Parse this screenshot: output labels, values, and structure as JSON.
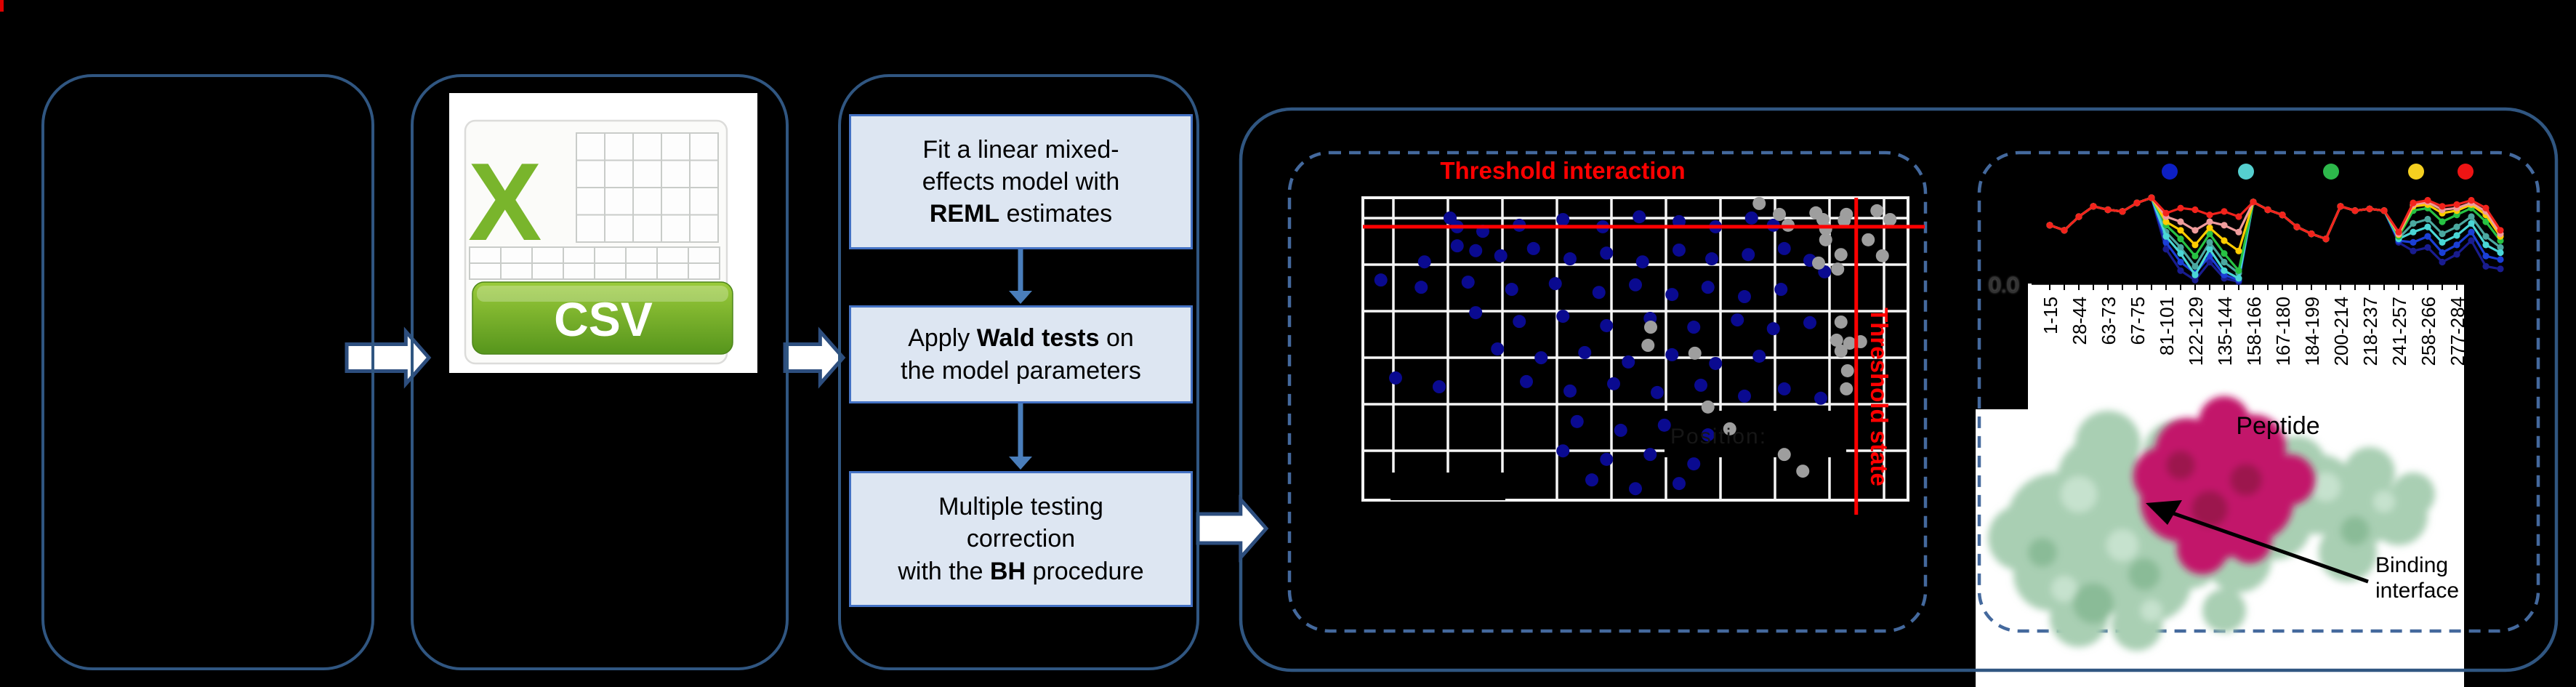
{
  "figure": {
    "corner_mark_color": "#dd0000",
    "background": "#000000"
  },
  "workflow": {
    "panel_border_color": "#305681",
    "box_fill": "#dde6f2",
    "box_border": "#4472c4",
    "arrow_color": "#4a7ebb",
    "boxes": [
      {
        "name": "fit-model-step",
        "lines": [
          {
            "pre": "Fit a linear mixed-",
            "bold": "",
            "post": ""
          },
          {
            "pre": "effects model with",
            "bold": "",
            "post": ""
          },
          {
            "pre": "",
            "bold": "REML",
            "post": " estimates"
          }
        ]
      },
      {
        "name": "wald-test-step",
        "lines": [
          {
            "pre": "Apply ",
            "bold": "Wald tests",
            "post": " on"
          },
          {
            "pre": "the model parameters",
            "bold": "",
            "post": ""
          }
        ]
      },
      {
        "name": "bh-correction-step",
        "lines": [
          {
            "pre": "Multiple testing",
            "bold": "",
            "post": ""
          },
          {
            "pre": "correction",
            "bold": "",
            "post": ""
          },
          {
            "pre": "with the ",
            "bold": "BH",
            "post": " procedure"
          }
        ]
      }
    ]
  },
  "csv_icon": {
    "label": "CSV",
    "x_letter": "X",
    "x_color": "#79b52c",
    "banner_top": "#9bcb3b",
    "banner_bottom": "#56951c",
    "grid_line_color": "#c9ccc9"
  },
  "chart_data": [
    {
      "id": "interaction-scatter",
      "type": "scatter",
      "title": "Threshold interaction",
      "title_color": "#ff0000",
      "vertical_threshold_label": "Threshold state",
      "threshold_line_color": "#ff0000",
      "h_threshold_frac": 0.096,
      "v_threshold_frac": 0.905,
      "faint_axis_label": "Position:",
      "grid_color": "#f5f5f5",
      "grid_on": true,
      "point_color_blue": "#0a0a90",
      "point_color_gray": "#9e9e9e",
      "blue_points": [
        [
          0.16,
          0.067
        ],
        [
          0.173,
          0.096
        ],
        [
          0.22,
          0.111
        ],
        [
          0.287,
          0.091
        ],
        [
          0.367,
          0.072
        ],
        [
          0.44,
          0.096
        ],
        [
          0.507,
          0.063
        ],
        [
          0.58,
          0.079
        ],
        [
          0.647,
          0.096
        ],
        [
          0.713,
          0.067
        ],
        [
          0.753,
          0.091
        ],
        [
          0.173,
          0.159
        ],
        [
          0.207,
          0.175
        ],
        [
          0.113,
          0.212
        ],
        [
          0.253,
          0.192
        ],
        [
          0.313,
          0.168
        ],
        [
          0.38,
          0.202
        ],
        [
          0.447,
          0.183
        ],
        [
          0.513,
          0.212
        ],
        [
          0.58,
          0.173
        ],
        [
          0.64,
          0.202
        ],
        [
          0.707,
          0.188
        ],
        [
          0.773,
          0.168
        ],
        [
          0.82,
          0.207
        ],
        [
          0.847,
          0.245
        ],
        [
          0.033,
          0.272
        ],
        [
          0.107,
          0.296
        ],
        [
          0.193,
          0.279
        ],
        [
          0.273,
          0.303
        ],
        [
          0.353,
          0.284
        ],
        [
          0.433,
          0.313
        ],
        [
          0.5,
          0.288
        ],
        [
          0.567,
          0.32
        ],
        [
          0.633,
          0.296
        ],
        [
          0.7,
          0.327
        ],
        [
          0.767,
          0.303
        ],
        [
          0.207,
          0.38
        ],
        [
          0.287,
          0.409
        ],
        [
          0.367,
          0.392
        ],
        [
          0.447,
          0.423
        ],
        [
          0.527,
          0.399
        ],
        [
          0.607,
          0.428
        ],
        [
          0.687,
          0.404
        ],
        [
          0.753,
          0.433
        ],
        [
          0.82,
          0.413
        ],
        [
          0.247,
          0.5
        ],
        [
          0.327,
          0.529
        ],
        [
          0.407,
          0.512
        ],
        [
          0.487,
          0.543
        ],
        [
          0.567,
          0.519
        ],
        [
          0.647,
          0.548
        ],
        [
          0.727,
          0.524
        ],
        [
          0.06,
          0.596
        ],
        [
          0.14,
          0.625
        ],
        [
          0.3,
          0.608
        ],
        [
          0.38,
          0.639
        ],
        [
          0.46,
          0.615
        ],
        [
          0.54,
          0.644
        ],
        [
          0.62,
          0.62
        ],
        [
          0.7,
          0.656
        ],
        [
          0.773,
          0.632
        ],
        [
          0.84,
          0.663
        ],
        [
          0.393,
          0.74
        ],
        [
          0.473,
          0.769
        ],
        [
          0.553,
          0.752
        ],
        [
          0.633,
          0.784
        ],
        [
          0.367,
          0.837
        ],
        [
          0.447,
          0.865
        ],
        [
          0.527,
          0.849
        ],
        [
          0.607,
          0.88
        ],
        [
          0.42,
          0.933
        ],
        [
          0.5,
          0.962
        ],
        [
          0.58,
          0.945
        ]
      ],
      "gray_points": [
        [
          0.727,
          0.019
        ],
        [
          0.764,
          0.055
        ],
        [
          0.78,
          0.091
        ],
        [
          0.943,
          0.043
        ],
        [
          0.967,
          0.072
        ],
        [
          0.927,
          0.139
        ],
        [
          0.953,
          0.192
        ],
        [
          0.887,
          0.055
        ],
        [
          0.831,
          0.05
        ],
        [
          0.844,
          0.072
        ],
        [
          0.849,
          0.103
        ],
        [
          0.883,
          0.075
        ],
        [
          0.849,
          0.139
        ],
        [
          0.877,
          0.188
        ],
        [
          0.871,
          0.236
        ],
        [
          0.836,
          0.216
        ],
        [
          0.877,
          0.411
        ],
        [
          0.869,
          0.471
        ],
        [
          0.893,
          0.481
        ],
        [
          0.877,
          0.507
        ],
        [
          0.889,
          0.572
        ],
        [
          0.887,
          0.632
        ],
        [
          0.528,
          0.428
        ],
        [
          0.523,
          0.488
        ],
        [
          0.609,
          0.514
        ],
        [
          0.633,
          0.692
        ],
        [
          0.673,
          0.764
        ],
        [
          0.773,
          0.849
        ],
        [
          0.807,
          0.904
        ],
        [
          0.913,
          0.476
        ]
      ]
    },
    {
      "id": "uptake-profile",
      "type": "line",
      "xlabel": "Peptide",
      "y_tick_label": "0.0",
      "x_tick_labels": [
        "1-15",
        "28-44",
        "63-73",
        "67-75",
        "81-101",
        "122-129",
        "135-144",
        "158-166",
        "167-180",
        "184-199",
        "200-214",
        "218-237",
        "241-257",
        "258-266",
        "277-284"
      ],
      "legend_dot_colors": [
        "#0d1fc4",
        "#55cfcf",
        "#2db84b",
        "#f5d020",
        "#ee1414"
      ],
      "series": [
        {
          "name": "navy",
          "color": "#191c8f",
          "values": [
            0.68,
            0.62,
            0.78,
            0.9,
            0.86,
            0.84,
            0.94,
            1.0,
            0.4,
            0.15,
            0.04,
            0.25,
            0.06,
            0.02,
            0.95,
            0.86,
            0.8,
            0.66,
            0.58,
            0.52,
            0.9,
            0.85,
            0.87,
            0.85,
            0.48,
            0.38,
            0.42,
            0.25,
            0.34,
            0.5,
            0.2,
            0.17
          ]
        },
        {
          "name": "blue",
          "color": "#1b3fd6",
          "values": [
            0.68,
            0.62,
            0.78,
            0.9,
            0.86,
            0.84,
            0.94,
            1.0,
            0.48,
            0.25,
            0.12,
            0.32,
            0.1,
            0.04,
            0.95,
            0.86,
            0.8,
            0.66,
            0.58,
            0.52,
            0.9,
            0.85,
            0.87,
            0.85,
            0.5,
            0.48,
            0.55,
            0.36,
            0.45,
            0.6,
            0.32,
            0.28
          ]
        },
        {
          "name": "teal",
          "color": "#4ba8a0",
          "values": [
            0.68,
            0.62,
            0.78,
            0.9,
            0.86,
            0.84,
            0.94,
            1.0,
            0.6,
            0.42,
            0.2,
            0.48,
            0.25,
            0.12,
            0.95,
            0.86,
            0.8,
            0.66,
            0.58,
            0.52,
            0.9,
            0.85,
            0.87,
            0.85,
            0.53,
            0.7,
            0.75,
            0.58,
            0.66,
            0.78,
            0.55,
            0.42
          ]
        },
        {
          "name": "cyan",
          "color": "#49d6d6",
          "values": [
            0.68,
            0.62,
            0.78,
            0.9,
            0.86,
            0.84,
            0.94,
            1.0,
            0.55,
            0.35,
            0.1,
            0.4,
            0.15,
            0.06,
            0.95,
            0.86,
            0.8,
            0.66,
            0.58,
            0.52,
            0.9,
            0.85,
            0.87,
            0.85,
            0.52,
            0.6,
            0.66,
            0.48,
            0.56,
            0.7,
            0.45,
            0.36
          ]
        },
        {
          "name": "green",
          "color": "#27c243",
          "values": [
            0.68,
            0.62,
            0.78,
            0.9,
            0.86,
            0.84,
            0.94,
            1.0,
            0.68,
            0.52,
            0.32,
            0.58,
            0.35,
            0.15,
            0.95,
            0.86,
            0.8,
            0.66,
            0.58,
            0.52,
            0.9,
            0.85,
            0.87,
            0.85,
            0.55,
            0.85,
            0.88,
            0.72,
            0.8,
            0.88,
            0.72,
            0.5
          ]
        },
        {
          "name": "yellow",
          "color": "#ffcc00",
          "values": [
            0.68,
            0.62,
            0.78,
            0.9,
            0.86,
            0.84,
            0.94,
            1.0,
            0.72,
            0.62,
            0.45,
            0.65,
            0.5,
            0.38,
            0.95,
            0.86,
            0.8,
            0.66,
            0.58,
            0.52,
            0.9,
            0.85,
            0.87,
            0.85,
            0.57,
            0.9,
            0.92,
            0.82,
            0.85,
            0.92,
            0.8,
            0.55
          ]
        },
        {
          "name": "pink",
          "color": "#ef9c9c",
          "values": [
            0.68,
            0.62,
            0.78,
            0.9,
            0.86,
            0.84,
            0.94,
            1.0,
            0.78,
            0.72,
            0.62,
            0.72,
            0.68,
            0.6,
            0.95,
            0.86,
            0.8,
            0.66,
            0.58,
            0.52,
            0.9,
            0.85,
            0.87,
            0.85,
            0.58,
            0.92,
            0.95,
            0.86,
            0.88,
            0.94,
            0.84,
            0.58
          ]
        },
        {
          "name": "red",
          "color": "#f2231c",
          "values": [
            0.68,
            0.62,
            0.78,
            0.9,
            0.86,
            0.84,
            0.94,
            1.0,
            0.82,
            0.88,
            0.86,
            0.8,
            0.84,
            0.78,
            0.95,
            0.86,
            0.8,
            0.66,
            0.58,
            0.52,
            0.9,
            0.85,
            0.87,
            0.85,
            0.6,
            0.94,
            0.97,
            0.9,
            0.92,
            0.97,
            0.88,
            0.62
          ]
        }
      ]
    }
  ],
  "protein": {
    "annotation_line1": "Binding",
    "annotation_line2": "interface",
    "surface_color": "#a9cfb3",
    "surface_highlight": "#c6e2ce",
    "surface_shade": "#8abb97",
    "epitope_color": "#c2186b",
    "epitope_shade": "#9c124e",
    "arrow_color": "#000000"
  }
}
